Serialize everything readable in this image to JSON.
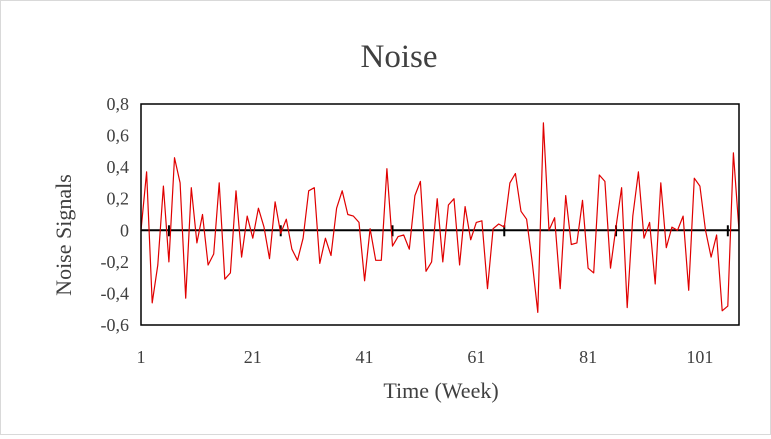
{
  "chart_data": {
    "type": "line",
    "title": "Noise",
    "xlabel": "Time (Week)",
    "ylabel": "Noise Signals",
    "xlim": [
      1,
      108
    ],
    "ylim": [
      -0.6,
      0.8
    ],
    "x_ticks": [
      1,
      21,
      41,
      61,
      81,
      101
    ],
    "x_tick_labels": [
      "1",
      "21",
      "41",
      "61",
      "81",
      "101"
    ],
    "y_ticks": [
      0.8,
      0.6,
      0.4,
      0.2,
      0,
      -0.2,
      -0.4,
      -0.6
    ],
    "y_tick_labels": [
      "0,8",
      "0,6",
      "0,4",
      "0,2",
      "0",
      "-0,2",
      "-0,4",
      "-0,6"
    ],
    "grid": false,
    "series": [
      {
        "color": "#e00000",
        "x": [
          1,
          2,
          3,
          4,
          5,
          6,
          7,
          8,
          9,
          10,
          11,
          12,
          13,
          14,
          15,
          16,
          17,
          18,
          19,
          20,
          21,
          22,
          23,
          24,
          25,
          26,
          27,
          28,
          29,
          30,
          31,
          32,
          33,
          34,
          35,
          36,
          37,
          38,
          39,
          40,
          41,
          42,
          43,
          44,
          45,
          46,
          47,
          48,
          49,
          50,
          51,
          52,
          53,
          54,
          55,
          56,
          57,
          58,
          59,
          60,
          61,
          62,
          63,
          64,
          65,
          66,
          67,
          68,
          69,
          70,
          71,
          72,
          73,
          74,
          75,
          76,
          77,
          78,
          79,
          80,
          81,
          82,
          83,
          84,
          85,
          86,
          87,
          88,
          89,
          90,
          91,
          92,
          93,
          94,
          95,
          96,
          97,
          98,
          99,
          100,
          101,
          102,
          103,
          104,
          105,
          106,
          107,
          108
        ],
        "values": [
          0,
          0.37,
          -0.46,
          -0.22,
          0.28,
          -0.2,
          0.46,
          0.3,
          -0.43,
          0.27,
          -0.08,
          0.1,
          -0.22,
          -0.15,
          0.3,
          -0.31,
          -0.27,
          0.25,
          -0.17,
          0.09,
          -0.05,
          0.14,
          0.02,
          -0.18,
          0.18,
          -0.02,
          0.07,
          -0.12,
          -0.19,
          -0.05,
          0.25,
          0.27,
          -0.21,
          -0.05,
          -0.16,
          0.14,
          0.25,
          0.1,
          0.09,
          0.05,
          -0.32,
          0.01,
          -0.19,
          -0.19,
          0.39,
          -0.1,
          -0.04,
          -0.03,
          -0.12,
          0.22,
          0.31,
          -0.26,
          -0.2,
          0.2,
          -0.2,
          0.16,
          0.2,
          -0.22,
          0.15,
          -0.06,
          0.05,
          0.06,
          -0.37,
          0.01,
          0.04,
          0.02,
          0.3,
          0.36,
          0.12,
          0.07,
          -0.2,
          -0.52,
          0.68,
          0,
          0.08,
          -0.37,
          0.22,
          -0.09,
          -0.08,
          0.19,
          -0.24,
          -0.27,
          0.35,
          0.31,
          -0.24,
          0.02,
          0.27,
          -0.49,
          0.09,
          0.37,
          -0.05,
          0.05,
          -0.34,
          0.3,
          -0.11,
          0.02,
          0,
          0.09,
          -0.38,
          0.33,
          0.28,
          0,
          -0.17,
          -0.03,
          -0.51,
          -0.48,
          0.49,
          0
        ]
      }
    ]
  }
}
